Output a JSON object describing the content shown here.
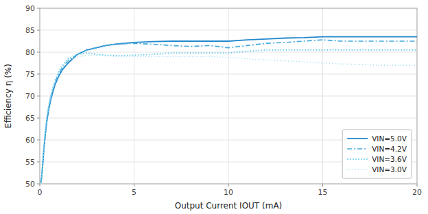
{
  "chart_data": {
    "type": "line",
    "xlabel": "Output Current IOUT (mA)",
    "ylabel": "Efficiency η (%)",
    "x": [
      0.05,
      0.1,
      0.15,
      0.2,
      0.3,
      0.4,
      0.5,
      0.6,
      0.7,
      0.8,
      0.9,
      1.0,
      1.2,
      1.5,
      2.0,
      2.5,
      3.0,
      3.5,
      4.0,
      5.0,
      6.0,
      7.0,
      8.0,
      9.0,
      10.0,
      11.0,
      12.0,
      13.0,
      14.0,
      15.0,
      16.0,
      17.0,
      18.0,
      19.0,
      20.0
    ],
    "series": [
      {
        "name": "VIN=5.0V",
        "color": "#2288cc",
        "line_style": "solid",
        "values": [
          50.2,
          51.5,
          54.0,
          57.0,
          61.5,
          65.0,
          67.5,
          69.5,
          71.0,
          72.5,
          73.5,
          74.5,
          76.0,
          77.5,
          79.5,
          80.5,
          81.0,
          81.5,
          81.8,
          82.2,
          82.4,
          82.5,
          82.5,
          82.5,
          82.5,
          82.8,
          83.0,
          83.2,
          83.3,
          83.5,
          83.5,
          83.5,
          83.5,
          83.5,
          83.5
        ]
      },
      {
        "name": "VIN=4.2V",
        "color": "#44aadd",
        "line_style": "dashdot",
        "values": [
          50.2,
          51.5,
          54.0,
          57.0,
          62.0,
          65.5,
          68.0,
          70.0,
          71.5,
          73.0,
          74.0,
          75.0,
          76.5,
          78.0,
          79.5,
          80.5,
          81.0,
          81.5,
          81.8,
          82.0,
          81.8,
          81.5,
          81.3,
          81.5,
          81.0,
          81.5,
          82.0,
          82.2,
          82.5,
          82.8,
          82.5,
          82.5,
          82.5,
          82.5,
          82.5
        ]
      },
      {
        "name": "VIN=3.6V",
        "color": "#66ccee",
        "line_style": "dotted",
        "values": [
          50.2,
          51.5,
          54.5,
          57.5,
          62.5,
          66.0,
          68.5,
          70.5,
          72.0,
          73.5,
          74.5,
          75.5,
          77.0,
          78.5,
          79.5,
          79.8,
          79.5,
          79.3,
          79.2,
          79.3,
          79.5,
          79.8,
          79.8,
          79.8,
          79.8,
          80.2,
          80.5,
          80.5,
          80.5,
          80.5,
          80.5,
          80.5,
          80.5,
          80.5,
          80.5
        ]
      },
      {
        "name": "VIN=3.0V",
        "color": "#99ddee",
        "line_style": "loosedotted",
        "values": [
          50.2,
          51.5,
          54.0,
          57.0,
          62.0,
          65.5,
          68.0,
          70.0,
          71.5,
          73.0,
          74.0,
          75.0,
          76.5,
          78.0,
          79.0,
          79.2,
          79.2,
          79.2,
          79.0,
          79.0,
          79.0,
          79.0,
          79.0,
          79.0,
          78.8,
          78.5,
          78.2,
          78.0,
          77.8,
          77.5,
          77.3,
          77.2,
          77.0,
          77.0,
          77.0
        ]
      }
    ],
    "xlim": [
      0,
      20
    ],
    "ylim": [
      50,
      90
    ],
    "xticks": [
      0,
      5,
      10,
      15,
      20
    ],
    "yticks": [
      50,
      55,
      60,
      65,
      70,
      75,
      80,
      85,
      90
    ],
    "grid": true,
    "legend": "lower right"
  }
}
